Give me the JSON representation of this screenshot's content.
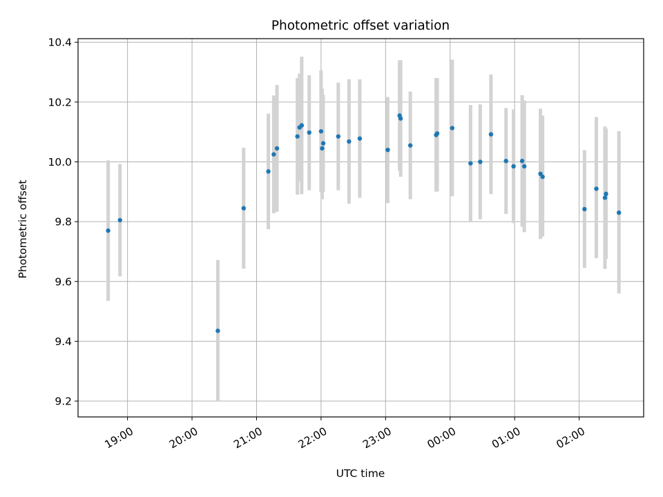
{
  "chart_data": {
    "type": "scatter",
    "title": "Photometric offset variation",
    "xlabel": "UTC time",
    "ylabel": "Photometric offset",
    "x_axis_kind": "time",
    "x_ticks": [
      "19:00",
      "20:00",
      "21:00",
      "22:00",
      "23:00",
      "00:00",
      "01:00",
      "02:00"
    ],
    "x_tick_minutes": [
      1140,
      1200,
      1260,
      1320,
      1380,
      1440,
      1500,
      1560
    ],
    "xlim_minutes": [
      1094,
      1620
    ],
    "y_ticks": [
      "9.2",
      "9.4",
      "9.6",
      "9.8",
      "10.0",
      "10.2",
      "10.4"
    ],
    "y_tick_values": [
      9.2,
      9.4,
      9.6,
      9.8,
      10.0,
      10.2,
      10.4
    ],
    "ylim": [
      9.147,
      10.412
    ],
    "grid": true,
    "marker_color": "#1f77b4",
    "errorbar_color": "#d3d3d3",
    "series": [
      {
        "points": [
          {
            "t": "18:42",
            "y": 9.77,
            "lo": 9.535,
            "hi": 10.005
          },
          {
            "t": "18:53",
            "y": 9.805,
            "lo": 9.617,
            "hi": 9.993
          },
          {
            "t": "20:24",
            "y": 9.435,
            "lo": 9.2,
            "hi": 9.672
          },
          {
            "t": "20:48",
            "y": 9.845,
            "lo": 9.643,
            "hi": 10.047
          },
          {
            "t": "21:11",
            "y": 9.968,
            "lo": 9.775,
            "hi": 10.161
          },
          {
            "t": "21:16",
            "y": 10.025,
            "lo": 9.828,
            "hi": 10.222
          },
          {
            "t": "21:19",
            "y": 10.045,
            "lo": 9.833,
            "hi": 10.257
          },
          {
            "t": "21:38",
            "y": 10.085,
            "lo": 9.89,
            "hi": 10.28
          },
          {
            "t": "21:40",
            "y": 10.115,
            "lo": 9.935,
            "hi": 10.295
          },
          {
            "t": "21:42",
            "y": 10.122,
            "lo": 9.892,
            "hi": 10.352
          },
          {
            "t": "21:49",
            "y": 10.098,
            "lo": 9.905,
            "hi": 10.29
          },
          {
            "t": "22:00",
            "y": 10.102,
            "lo": 9.898,
            "hi": 10.306
          },
          {
            "t": "22:01",
            "y": 10.045,
            "lo": 9.875,
            "hi": 10.245
          },
          {
            "t": "22:02",
            "y": 10.062,
            "lo": 9.9,
            "hi": 10.224
          },
          {
            "t": "22:16",
            "y": 10.085,
            "lo": 9.905,
            "hi": 10.265
          },
          {
            "t": "22:26",
            "y": 10.068,
            "lo": 9.86,
            "hi": 10.276
          },
          {
            "t": "22:36",
            "y": 10.078,
            "lo": 9.88,
            "hi": 10.276
          },
          {
            "t": "23:02",
            "y": 10.04,
            "lo": 9.862,
            "hi": 10.217
          },
          {
            "t": "23:13",
            "y": 10.155,
            "lo": 9.97,
            "hi": 10.34
          },
          {
            "t": "23:14",
            "y": 10.145,
            "lo": 9.95,
            "hi": 10.34
          },
          {
            "t": "23:23",
            "y": 10.055,
            "lo": 9.875,
            "hi": 10.235
          },
          {
            "t": "23:47",
            "y": 10.09,
            "lo": 9.9,
            "hi": 10.28
          },
          {
            "t": "23:48",
            "y": 10.095,
            "lo": 9.902,
            "hi": 10.28
          },
          {
            "t": "00:02",
            "y": 10.113,
            "lo": 9.885,
            "hi": 10.342
          },
          {
            "t": "00:19",
            "y": 9.995,
            "lo": 9.8,
            "hi": 10.19
          },
          {
            "t": "00:28",
            "y": 10.0,
            "lo": 9.808,
            "hi": 10.192
          },
          {
            "t": "00:38",
            "y": 10.092,
            "lo": 9.892,
            "hi": 10.292
          },
          {
            "t": "00:52",
            "y": 10.003,
            "lo": 9.826,
            "hi": 10.18
          },
          {
            "t": "00:59",
            "y": 9.985,
            "lo": 9.795,
            "hi": 10.175
          },
          {
            "t": "01:07",
            "y": 10.003,
            "lo": 9.783,
            "hi": 10.223
          },
          {
            "t": "01:09",
            "y": 9.985,
            "lo": 9.765,
            "hi": 10.205
          },
          {
            "t": "01:24",
            "y": 9.96,
            "lo": 9.742,
            "hi": 10.178
          },
          {
            "t": "01:26",
            "y": 9.95,
            "lo": 9.75,
            "hi": 10.155
          },
          {
            "t": "02:05",
            "y": 9.842,
            "lo": 9.645,
            "hi": 10.039
          },
          {
            "t": "02:16",
            "y": 9.91,
            "lo": 9.678,
            "hi": 10.15
          },
          {
            "t": "02:24",
            "y": 9.88,
            "lo": 9.642,
            "hi": 10.118
          },
          {
            "t": "02:25",
            "y": 9.893,
            "lo": 9.675,
            "hi": 10.111
          },
          {
            "t": "02:37",
            "y": 9.83,
            "lo": 9.56,
            "hi": 10.103
          }
        ]
      }
    ]
  }
}
